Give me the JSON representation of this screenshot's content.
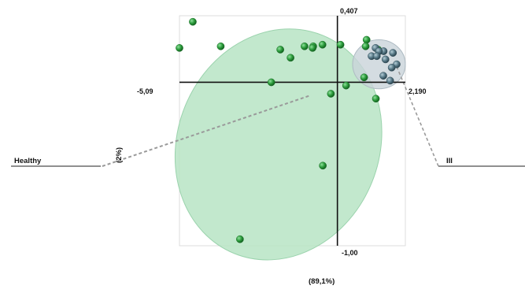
{
  "chart_data": {
    "type": "scatter",
    "title": "",
    "xlabel": "(89,1%)",
    "ylabel": "(2%)",
    "xlim": [
      -5.09,
      2.19
    ],
    "ylim": [
      -1.0,
      0.407
    ],
    "tick_labels": {
      "x_min": "-5,09",
      "x_max": "2,190",
      "y_max": "0,407",
      "y_min": "-1,00"
    },
    "group_labels": [
      "Healthy",
      "III"
    ],
    "grid": false,
    "legend": "none",
    "colors": {
      "Healthy": "#2e9e3e",
      "III": "#5a7c8a",
      "healthy_ellipse": "#b7e4c4",
      "iii_ellipse": "#c9d3d9",
      "axis": "#111111",
      "connector": "#9a9a9a"
    },
    "series": [
      {
        "name": "Healthy",
        "ellipse": {
          "cx": -1.9,
          "cy": -0.38,
          "rx": 3.25,
          "ry": 0.72,
          "rotate_deg": 22
        },
        "points": [
          [
            -4.66,
            0.37
          ],
          [
            -5.09,
            0.21
          ],
          [
            -3.76,
            0.22
          ],
          [
            -1.84,
            0.2
          ],
          [
            -1.06,
            0.22
          ],
          [
            -0.78,
            0.22
          ],
          [
            -0.48,
            0.23
          ],
          [
            -0.8,
            0.21
          ],
          [
            -1.51,
            0.15
          ],
          [
            0.1,
            0.23
          ],
          [
            0.94,
            0.26
          ],
          [
            0.91,
            0.22
          ],
          [
            1.31,
            0.2
          ],
          [
            -2.13,
            0.0
          ],
          [
            0.86,
            0.03
          ],
          [
            0.28,
            -0.02
          ],
          [
            -0.21,
            -0.07
          ],
          [
            1.24,
            -0.1
          ],
          [
            -0.47,
            -0.51
          ],
          [
            -3.14,
            -0.96
          ]
        ]
      },
      {
        "name": "III",
        "ellipse": {
          "cx": 1.34,
          "cy": 0.11,
          "rx": 0.85,
          "ry": 0.15,
          "rotate_deg": 0
        },
        "points": [
          [
            1.23,
            0.21
          ],
          [
            1.49,
            0.19
          ],
          [
            1.34,
            0.19
          ],
          [
            1.79,
            0.18
          ],
          [
            1.1,
            0.16
          ],
          [
            1.27,
            0.16
          ],
          [
            1.55,
            0.14
          ],
          [
            1.91,
            0.11
          ],
          [
            1.75,
            0.09
          ],
          [
            1.48,
            0.04
          ],
          [
            1.7,
            0.01
          ]
        ]
      }
    ]
  }
}
